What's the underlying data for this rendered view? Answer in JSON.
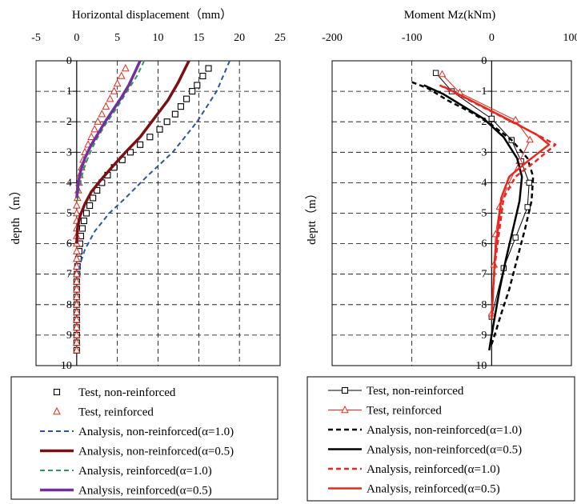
{
  "chart_data": [
    {
      "type": "scatter",
      "title": "",
      "xlabel": "Horizontal displacement（mm）",
      "ylabel": "depth（m）",
      "xlim": [
        -5,
        25
      ],
      "ylim": [
        0,
        10
      ],
      "y_inverted": true,
      "x_ticks": [
        "-5",
        "0",
        "5",
        "10",
        "15",
        "20",
        "25"
      ],
      "y_ticks": [
        "0",
        "1",
        "2",
        "3",
        "4",
        "5",
        "6",
        "7",
        "8",
        "9",
        "10"
      ],
      "grid": "dashed, x at 0/5/10/15/20, y at 1-9",
      "legend": "below",
      "series": [
        {
          "name": "Test, non-reinforced",
          "style": "square-marker",
          "color": "#000000",
          "points": [
            [
              16.2,
              0.25
            ],
            [
              15.5,
              0.5
            ],
            [
              14.8,
              0.8
            ],
            [
              14.2,
              1.0
            ],
            [
              13.5,
              1.25
            ],
            [
              12.8,
              1.5
            ],
            [
              12.1,
              1.75
            ],
            [
              11.1,
              2.0
            ],
            [
              10.2,
              2.25
            ],
            [
              9.0,
              2.5
            ],
            [
              7.8,
              2.75
            ],
            [
              6.6,
              3.0
            ],
            [
              5.6,
              3.25
            ],
            [
              4.6,
              3.5
            ],
            [
              3.8,
              3.75
            ],
            [
              3.1,
              4.0
            ],
            [
              2.5,
              4.25
            ],
            [
              2.0,
              4.5
            ],
            [
              1.6,
              4.75
            ],
            [
              1.2,
              5.0
            ],
            [
              0.9,
              5.25
            ],
            [
              0.7,
              5.5
            ],
            [
              0.5,
              5.75
            ],
            [
              0.4,
              6.0
            ],
            [
              0.3,
              6.25
            ],
            [
              0.2,
              6.5
            ],
            [
              0.1,
              6.75
            ],
            [
              0.05,
              7.0
            ],
            [
              0.0,
              7.25
            ],
            [
              0.0,
              7.5
            ],
            [
              0.0,
              7.75
            ],
            [
              0.0,
              8.0
            ],
            [
              0.0,
              8.25
            ],
            [
              0.0,
              8.5
            ],
            [
              0.0,
              8.75
            ],
            [
              0.0,
              9.0
            ],
            [
              0.0,
              9.25
            ],
            [
              0.0,
              9.5
            ]
          ]
        },
        {
          "name": "Test, reinforced",
          "style": "triangle-marker",
          "color": "#e8281e",
          "points": [
            [
              6.0,
              0.25
            ],
            [
              5.5,
              0.5
            ],
            [
              5.0,
              0.75
            ],
            [
              4.6,
              1.0
            ],
            [
              4.1,
              1.25
            ],
            [
              3.6,
              1.5
            ],
            [
              3.1,
              1.75
            ],
            [
              2.6,
              2.0
            ],
            [
              2.2,
              2.25
            ],
            [
              1.8,
              2.5
            ],
            [
              1.4,
              2.75
            ],
            [
              1.0,
              3.0
            ],
            [
              0.8,
              3.25
            ],
            [
              0.6,
              3.5
            ],
            [
              0.4,
              3.75
            ],
            [
              0.3,
              4.0
            ],
            [
              0.2,
              4.25
            ],
            [
              0.1,
              4.5
            ],
            [
              0.0,
              4.75
            ],
            [
              0.0,
              5.0
            ],
            [
              0.0,
              5.25
            ],
            [
              0.0,
              5.5
            ],
            [
              0.0,
              5.75
            ],
            [
              0.0,
              6.0
            ],
            [
              0.0,
              6.25
            ],
            [
              0.0,
              6.5
            ],
            [
              0.0,
              6.75
            ],
            [
              0.0,
              7.0
            ],
            [
              0.0,
              7.25
            ],
            [
              0.0,
              7.5
            ],
            [
              0.0,
              7.75
            ],
            [
              0.0,
              8.0
            ],
            [
              0.0,
              8.25
            ],
            [
              0.0,
              8.5
            ],
            [
              0.0,
              8.75
            ],
            [
              0.0,
              9.0
            ],
            [
              0.0,
              9.25
            ],
            [
              0.0,
              9.5
            ]
          ]
        },
        {
          "name": "Analysis, non-reinforced(α=1.0)",
          "style": "dashed-line",
          "color": "#2855a5",
          "width": 2,
          "points": [
            [
              18.8,
              0.0
            ],
            [
              17.2,
              1.0
            ],
            [
              14.8,
              2.0
            ],
            [
              11.8,
              3.0
            ],
            [
              8.6,
              3.8
            ],
            [
              6.0,
              4.5
            ],
            [
              4.0,
              5.0
            ],
            [
              2.2,
              5.6
            ],
            [
              1.0,
              6.2
            ],
            [
              0.5,
              6.6
            ],
            [
              0.2,
              7.0
            ]
          ]
        },
        {
          "name": "Analysis, non-reinforced(α=0.5)",
          "style": "solid-line",
          "color": "#7a0f14",
          "width": 3.5,
          "points": [
            [
              13.8,
              0.0
            ],
            [
              12.5,
              0.7
            ],
            [
              11.2,
              1.3
            ],
            [
              9.5,
              1.9
            ],
            [
              7.8,
              2.5
            ],
            [
              6.0,
              3.0
            ],
            [
              4.3,
              3.5
            ],
            [
              3.0,
              3.9
            ],
            [
              1.8,
              4.3
            ],
            [
              1.0,
              4.7
            ],
            [
              0.4,
              5.1
            ],
            [
              0.1,
              5.5
            ],
            [
              0.0,
              6.0
            ]
          ]
        },
        {
          "name": "Analysis, reinforced(α=1.0)",
          "style": "dashed-line",
          "color": "#2e9a5a",
          "width": 2,
          "points": [
            [
              8.3,
              0.0
            ],
            [
              7.4,
              0.5
            ],
            [
              6.2,
              1.0
            ],
            [
              4.8,
              1.6
            ],
            [
              3.5,
              2.1
            ],
            [
              2.4,
              2.6
            ],
            [
              1.5,
              3.1
            ],
            [
              0.8,
              3.6
            ],
            [
              0.3,
              4.2
            ],
            [
              0.0,
              4.7
            ]
          ]
        },
        {
          "name": "Analysis, reinforced(α=0.5)",
          "style": "solid-line",
          "color": "#7030a0",
          "width": 3.5,
          "points": [
            [
              7.8,
              0.0
            ],
            [
              7.2,
              0.35
            ],
            [
              6.4,
              0.8
            ],
            [
              5.5,
              1.2
            ],
            [
              4.5,
              1.6
            ],
            [
              3.5,
              2.0
            ],
            [
              2.6,
              2.4
            ],
            [
              1.7,
              2.8
            ],
            [
              1.0,
              3.2
            ],
            [
              0.5,
              3.6
            ],
            [
              0.2,
              4.0
            ],
            [
              0.0,
              4.5
            ]
          ]
        }
      ]
    },
    {
      "type": "line",
      "title": "",
      "xlabel": "Moment Mz(kNm)",
      "ylabel": "deptt（m）",
      "xlim": [
        -200,
        100
      ],
      "ylim": [
        0,
        10
      ],
      "y_inverted": true,
      "x_ticks": [
        "-200",
        "-100",
        "0",
        "100"
      ],
      "y_ticks": [
        "0",
        "1",
        "2",
        "3",
        "4",
        "5",
        "6",
        "7",
        "8",
        "9",
        "10"
      ],
      "grid": "dashed, x at -100/0, y at 1-9",
      "legend": "below",
      "series": [
        {
          "name": "Test, non-reinforced",
          "style": "line-square",
          "color": "#000000",
          "width": 1,
          "points": [
            [
              -70,
              0.4
            ],
            [
              -50,
              1.0
            ],
            [
              0,
              1.9
            ],
            [
              25,
              2.6
            ],
            [
              37,
              3.3
            ],
            [
              47,
              4.0
            ],
            [
              45,
              4.8
            ],
            [
              30,
              5.8
            ],
            [
              15,
              6.8
            ],
            [
              0,
              8.4
            ]
          ]
        },
        {
          "name": "Test, reinforced",
          "style": "line-triangle",
          "color": "#e8281e",
          "width": 1,
          "points": [
            [
              -62,
              0.45
            ],
            [
              -40,
              1.05
            ],
            [
              30,
              1.95
            ],
            [
              48,
              2.6
            ],
            [
              35,
              3.3
            ],
            [
              20,
              4.1
            ],
            [
              10,
              4.8
            ],
            [
              5,
              5.7
            ],
            [
              3,
              6.7
            ],
            [
              0,
              8.3
            ]
          ]
        },
        {
          "name": "Analysis, non-reinforced(α=1.0)",
          "style": "dashed-line",
          "color": "#000000",
          "width": 2.5,
          "points": [
            [
              -100,
              0.7
            ],
            [
              -80,
              0.9
            ],
            [
              -55,
              1.3
            ],
            [
              -25,
              1.7
            ],
            [
              0,
              2.1
            ],
            [
              25,
              2.6
            ],
            [
              45,
              3.2
            ],
            [
              52,
              3.8
            ],
            [
              50,
              4.6
            ],
            [
              42,
              5.5
            ],
            [
              32,
              6.5
            ],
            [
              22,
              7.5
            ],
            [
              12,
              8.3
            ],
            [
              5,
              8.9
            ],
            [
              0,
              9.3
            ]
          ]
        },
        {
          "name": "Analysis, non-reinforced(α=0.5)",
          "style": "solid-line",
          "color": "#000000",
          "width": 2.5,
          "points": [
            [
              -85,
              0.8
            ],
            [
              -60,
              1.1
            ],
            [
              -35,
              1.5
            ],
            [
              -10,
              1.9
            ],
            [
              15,
              2.5
            ],
            [
              32,
              3.2
            ],
            [
              38,
              3.8
            ],
            [
              35,
              4.6
            ],
            [
              27,
              5.5
            ],
            [
              18,
              6.5
            ],
            [
              10,
              7.5
            ],
            [
              4,
              8.4
            ],
            [
              0,
              9.0
            ],
            [
              -3,
              9.5
            ]
          ]
        },
        {
          "name": "Analysis, reinforced(α=1.0)",
          "style": "dashed-line",
          "color": "#e8281e",
          "width": 2.5,
          "points": [
            [
              -65,
              0.8
            ],
            [
              -35,
              1.2
            ],
            [
              -5,
              1.6
            ],
            [
              25,
              2.0
            ],
            [
              55,
              2.4
            ],
            [
              80,
              2.75
            ],
            [
              55,
              3.3
            ],
            [
              30,
              3.8
            ],
            [
              15,
              4.5
            ],
            [
              10,
              5.5
            ],
            [
              5,
              6.5
            ],
            [
              2,
              7.5
            ],
            [
              0,
              8.5
            ]
          ]
        },
        {
          "name": "Analysis, reinforced(α=0.5)",
          "style": "solid-line",
          "color": "#e8281e",
          "width": 2.5,
          "points": [
            [
              -60,
              0.85
            ],
            [
              -30,
              1.25
            ],
            [
              0,
              1.65
            ],
            [
              30,
              2.05
            ],
            [
              58,
              2.45
            ],
            [
              72,
              2.75
            ],
            [
              45,
              3.3
            ],
            [
              22,
              3.8
            ],
            [
              12,
              4.5
            ],
            [
              8,
              5.5
            ],
            [
              4,
              6.5
            ],
            [
              2,
              7.5
            ],
            [
              0,
              8.5
            ]
          ]
        }
      ]
    }
  ]
}
